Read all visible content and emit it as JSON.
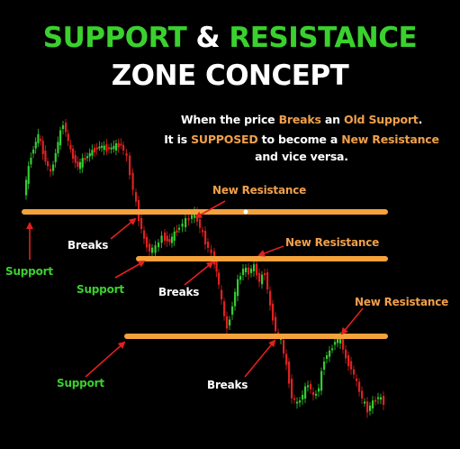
{
  "title": {
    "line1": [
      {
        "text": "SUPPORT",
        "color": "#3ad12e"
      },
      {
        "text": " & ",
        "color": "#ffffff"
      },
      {
        "text": "RESISTANCE",
        "color": "#3ad12e"
      }
    ],
    "line2": "ZONE CONCEPT"
  },
  "description": {
    "line1": [
      {
        "text": "When the price ",
        "color": "#ffffff"
      },
      {
        "text": "Breaks",
        "color": "#f0a04b"
      },
      {
        "text": " an ",
        "color": "#ffffff"
      },
      {
        "text": "Old Support",
        "color": "#f0a04b"
      },
      {
        "text": ".",
        "color": "#ffffff"
      }
    ],
    "line2": [
      {
        "text": "It is ",
        "color": "#ffffff"
      },
      {
        "text": "SUPPOSED",
        "color": "#f0a04b"
      },
      {
        "text": " to become a ",
        "color": "#ffffff"
      },
      {
        "text": "New Resistance",
        "color": "#f0a04b"
      }
    ],
    "line3": [
      {
        "text": "and vice versa.",
        "color": "#ffffff"
      }
    ]
  },
  "labels": {
    "support_1": "Support",
    "support_2": "Support",
    "support_3": "Support",
    "breaks_1": "Breaks",
    "breaks_2": "Breaks",
    "breaks_3": "Breaks",
    "new_resistance_1": "New Resistance",
    "new_resistance_2": "New Resistance",
    "new_resistance_3": "New Resistance"
  },
  "colors": {
    "bull_candle": "#33cc33",
    "bear_candle": "#e02020",
    "level_line": "#f5a23c",
    "support_label": "#3ad12e",
    "breaks_label": "#ffffff",
    "resistance_label": "#f0a04b",
    "arrow": "#e02020"
  }
}
